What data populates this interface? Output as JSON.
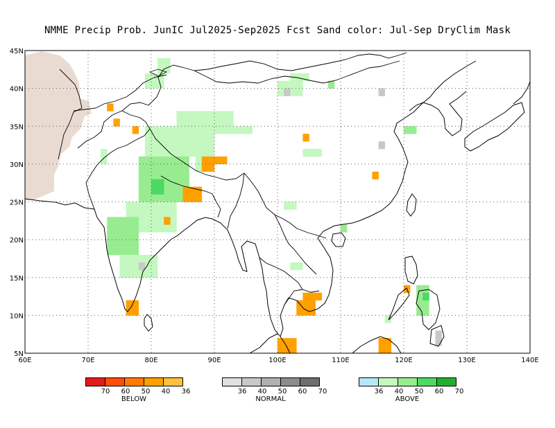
{
  "title": "NMME Precip Prob. JunIC  Jul2025-Sep2025 Fcst  Sand color: Jul-Sep DryClim Mask",
  "map": {
    "lon_range": [
      60,
      140
    ],
    "lat_range": [
      5,
      45
    ],
    "lon_ticks": [
      "60E",
      "70E",
      "80E",
      "90E",
      "100E",
      "110E",
      "120E",
      "130E",
      "140E"
    ],
    "lat_ticks": [
      "5N",
      "10N",
      "15N",
      "20N",
      "25N",
      "30N",
      "35N",
      "40N",
      "45N"
    ],
    "dry_mask_color": "#eadbd2"
  },
  "legends": [
    {
      "category": "BELOW",
      "colors": [
        "#e31a1c",
        "#fd4d0c",
        "#fe7a00",
        "#ffa000",
        "#ffc040"
      ],
      "labels": [
        "70",
        "60",
        "50",
        "40",
        "36"
      ]
    },
    {
      "category": "NORMAL",
      "colors": [
        "#e0e0e0",
        "#c8c8c8",
        "#b0b0b0",
        "#8c8c8c",
        "#6e6e6e"
      ],
      "labels": [
        "36",
        "40",
        "50",
        "60",
        "70"
      ]
    },
    {
      "category": "ABOVE",
      "colors": [
        "#b4e8f7",
        "#c4f8c0",
        "#98ec90",
        "#4cd964",
        "#22b02c"
      ],
      "labels": [
        "36",
        "40",
        "50",
        "60",
        "70"
      ]
    }
  ]
}
